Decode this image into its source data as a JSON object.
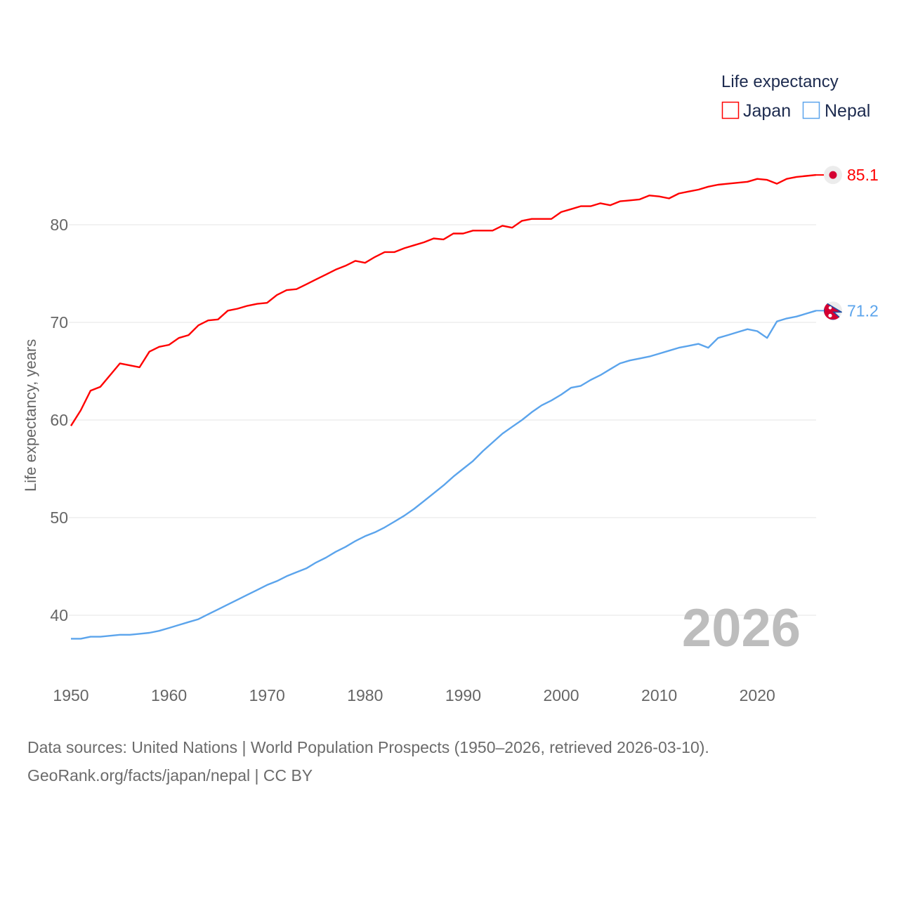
{
  "chart_data": {
    "type": "line",
    "title": "",
    "xlabel": "",
    "ylabel": "Life expectancy, years",
    "xlim": [
      1950,
      2026
    ],
    "ylim": [
      35,
      88
    ],
    "x_ticks": [
      1950,
      1960,
      1970,
      1980,
      1990,
      2000,
      2010,
      2020
    ],
    "y_ticks": [
      40,
      50,
      60,
      70,
      80
    ],
    "grid": true,
    "legend": {
      "title": "Life expectancy",
      "placement": "top-right"
    },
    "current_year_label": "2026",
    "x": [
      1950,
      1951,
      1952,
      1953,
      1954,
      1955,
      1956,
      1957,
      1958,
      1959,
      1960,
      1961,
      1962,
      1963,
      1964,
      1965,
      1966,
      1967,
      1968,
      1969,
      1970,
      1971,
      1972,
      1973,
      1974,
      1975,
      1976,
      1977,
      1978,
      1979,
      1980,
      1981,
      1982,
      1983,
      1984,
      1985,
      1986,
      1987,
      1988,
      1989,
      1990,
      1991,
      1992,
      1993,
      1994,
      1995,
      1996,
      1997,
      1998,
      1999,
      2000,
      2001,
      2002,
      2003,
      2004,
      2005,
      2006,
      2007,
      2008,
      2009,
      2010,
      2011,
      2012,
      2013,
      2014,
      2015,
      2016,
      2017,
      2018,
      2019,
      2020,
      2021,
      2022,
      2023,
      2024,
      2025,
      2026
    ],
    "series": [
      {
        "name": "Japan",
        "color": "#ff0000",
        "end_label": "85.1",
        "values": [
          59.4,
          61.0,
          63.0,
          63.4,
          64.6,
          65.8,
          65.6,
          65.4,
          67.0,
          67.5,
          67.7,
          68.4,
          68.7,
          69.7,
          70.2,
          70.3,
          71.2,
          71.4,
          71.7,
          71.9,
          72.0,
          72.8,
          73.3,
          73.4,
          73.9,
          74.4,
          74.9,
          75.4,
          75.8,
          76.3,
          76.1,
          76.7,
          77.2,
          77.2,
          77.6,
          77.9,
          78.2,
          78.6,
          78.5,
          79.1,
          79.1,
          79.4,
          79.4,
          79.4,
          79.9,
          79.7,
          80.4,
          80.6,
          80.6,
          80.6,
          81.3,
          81.6,
          81.9,
          81.9,
          82.2,
          82.0,
          82.4,
          82.5,
          82.6,
          83.0,
          82.9,
          82.7,
          83.2,
          83.4,
          83.6,
          83.9,
          84.1,
          84.2,
          84.3,
          84.4,
          84.7,
          84.6,
          84.2,
          84.7,
          84.9,
          85.0,
          85.1
        ]
      },
      {
        "name": "Nepal",
        "color": "#5ba4ec",
        "end_label": "71.2",
        "values": [
          37.6,
          37.6,
          37.8,
          37.8,
          37.9,
          38.0,
          38.0,
          38.1,
          38.2,
          38.4,
          38.7,
          39.0,
          39.3,
          39.6,
          40.1,
          40.6,
          41.1,
          41.6,
          42.1,
          42.6,
          43.1,
          43.5,
          44.0,
          44.4,
          44.8,
          45.4,
          45.9,
          46.5,
          47.0,
          47.6,
          48.1,
          48.5,
          49.0,
          49.6,
          50.2,
          50.9,
          51.7,
          52.5,
          53.3,
          54.2,
          55.0,
          55.8,
          56.8,
          57.7,
          58.6,
          59.3,
          60.0,
          60.8,
          61.5,
          62.0,
          62.6,
          63.3,
          63.5,
          64.1,
          64.6,
          65.2,
          65.8,
          66.1,
          66.3,
          66.5,
          66.8,
          67.1,
          67.4,
          67.6,
          67.8,
          67.4,
          68.4,
          68.7,
          69.0,
          69.3,
          69.1,
          68.4,
          70.1,
          70.4,
          70.6,
          70.9,
          71.2
        ]
      }
    ]
  },
  "source": {
    "line1": "Data sources: United Nations | World Population Prospects (1950–2026, retrieved 2026-03-10).",
    "line2": "GeoRank.org/facts/japan/nepal | CC BY"
  }
}
